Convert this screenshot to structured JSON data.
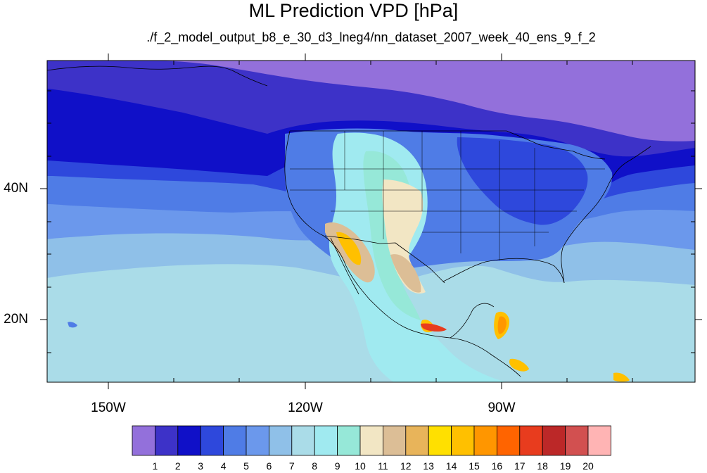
{
  "title": "ML Prediction VPD [hPa]",
  "subtitle": "./f_2_model_output_b8_e_30_d3_lneg4/nn_dataset_2007_week_40_ens_9_f_2",
  "axes": {
    "lat_labels": [
      "40N",
      "20N"
    ],
    "lon_labels": [
      "150W",
      "120W",
      "90W"
    ]
  },
  "colorbar": {
    "labels": [
      "1",
      "2",
      "3",
      "4",
      "5",
      "6",
      "7",
      "8",
      "9",
      "10",
      "11",
      "12",
      "13",
      "14",
      "15",
      "16",
      "17",
      "18",
      "19",
      "20"
    ],
    "colors": [
      "#9370db",
      "#3d32c8",
      "#1010c8",
      "#2e48dc",
      "#4f7ce6",
      "#6b98ec",
      "#8fc0e8",
      "#aadce8",
      "#a0eaf0",
      "#96e8d8",
      "#f2e6c4",
      "#dcbe96",
      "#e8b45a",
      "#ffe000",
      "#ffc000",
      "#ff9600",
      "#ff6400",
      "#e83c1e",
      "#bc2828",
      "#d25050",
      "#ffb4b4"
    ]
  },
  "map": {
    "background_color": "#aadce8",
    "level_colors": {
      "l1": "#9370db",
      "l2": "#3d32c8",
      "l3": "#1010c8",
      "l4": "#2e48dc",
      "l5": "#4f7ce6",
      "l6": "#6b98ec",
      "l7": "#8fc0e8",
      "l8": "#aadce8",
      "l9": "#a0eaf0",
      "l10": "#96e8d8",
      "l11": "#f2e6c4",
      "l12": "#dcbe96",
      "l13": "#e8b45a",
      "l14": "#ffe000",
      "l15": "#ffc000",
      "l16": "#ff9600",
      "l17": "#ff6400",
      "l18": "#e83c1e",
      "l19": "#bc2828",
      "l20": "#d25050",
      "l21": "#ffb4b4"
    }
  }
}
